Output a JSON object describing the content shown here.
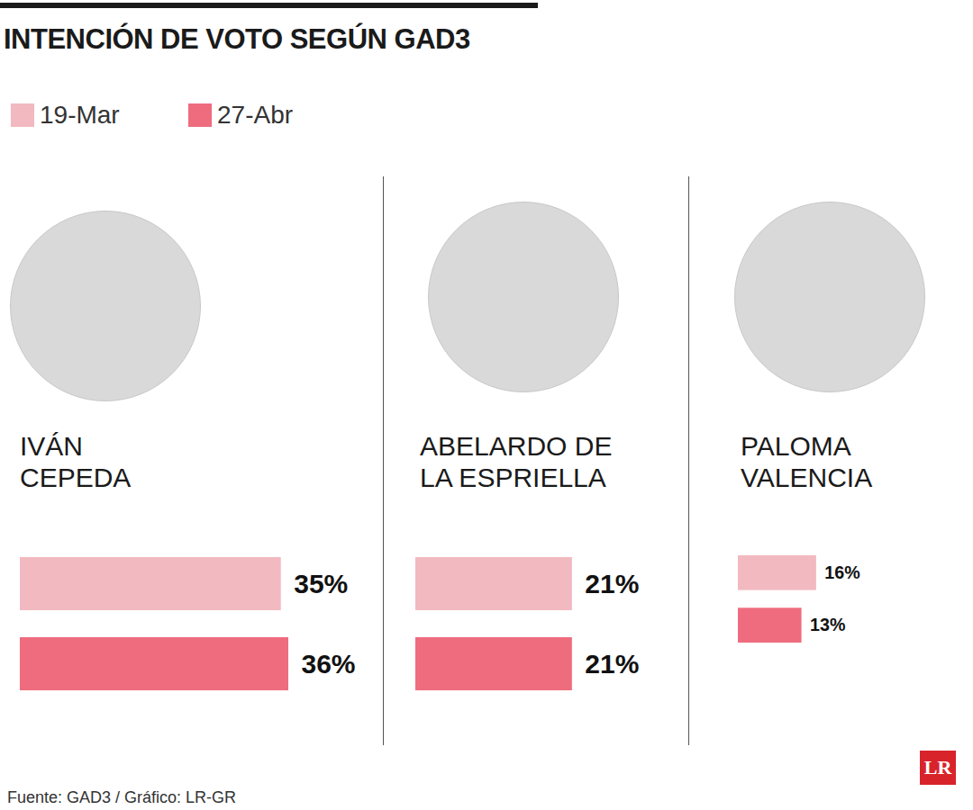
{
  "chart_data": {
    "type": "bar",
    "title": "INTENCIÓN DE VOTO SEGÚN GAD3",
    "orientation": "horizontal",
    "categories": [
      "IVÁN CEPEDA",
      "ABELARDO DE LA ESPRIELLA",
      "PALOMA VALENCIA"
    ],
    "series": [
      {
        "name": "19-Mar",
        "color": "#f2b9c0",
        "values": [
          35,
          21,
          16
        ],
        "value_labels": [
          "35%",
          "21%",
          "16%"
        ]
      },
      {
        "name": "27-Abr",
        "color": "#ee6c7e",
        "values": [
          36,
          21,
          13
        ],
        "value_labels": [
          "36%",
          "21%",
          "13%"
        ]
      }
    ],
    "xlim": [
      0,
      36
    ],
    "data_labels": true,
    "tick_labels": false,
    "grid": false,
    "legend": "top-left",
    "source": "Fuente: GAD3 / Gráfico: LR-GR",
    "logo": "LR"
  }
}
